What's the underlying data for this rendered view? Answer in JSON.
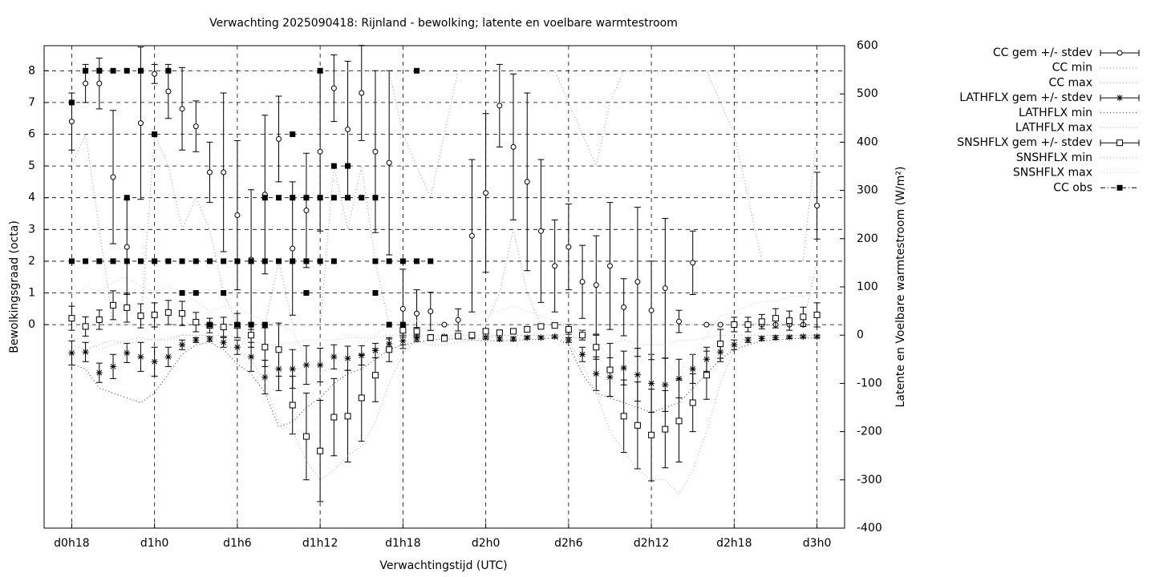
{
  "chart_data": {
    "type": "errorbar-line",
    "title": "Verwachting 2025090418: Rijnland - bewolking; latente en voelbare warmtestroom",
    "xlabel": "Verwachtingstijd (UTC)",
    "ylabel": "Bewolkingsgraad (octa)",
    "y2label": "Latente en Voelbare warmtestroom (W/m²)",
    "xlim": [
      16,
      74
    ],
    "xticks": [
      {
        "value": 18,
        "label": "d0h18"
      },
      {
        "value": 24,
        "label": "d1h0"
      },
      {
        "value": 30,
        "label": "d1h6"
      },
      {
        "value": 36,
        "label": "d1h12"
      },
      {
        "value": 42,
        "label": "d1h18"
      },
      {
        "value": 48,
        "label": "d2h0"
      },
      {
        "value": 54,
        "label": "d2h6"
      },
      {
        "value": 60,
        "label": "d2h12"
      },
      {
        "value": 66,
        "label": "d2h18"
      },
      {
        "value": 72,
        "label": "d3h0"
      }
    ],
    "ylim": [
      -6.41,
      8.79
    ],
    "yticks": [
      0,
      1,
      2,
      3,
      4,
      5,
      6,
      7,
      8
    ],
    "y2lim": [
      -400,
      600
    ],
    "y2ticks": [
      -400,
      -300,
      -200,
      -100,
      0,
      100,
      200,
      300,
      400,
      500,
      600
    ],
    "grid": true,
    "legend": "right-outside",
    "x": [
      18,
      19,
      20,
      21,
      22,
      23,
      24,
      25,
      26,
      27,
      28,
      29,
      30,
      31,
      32,
      33,
      34,
      35,
      36,
      37,
      38,
      39,
      40,
      41,
      42,
      43,
      44,
      45,
      46,
      47,
      48,
      49,
      50,
      51,
      52,
      53,
      54,
      55,
      56,
      57,
      58,
      59,
      60,
      61,
      62,
      63,
      64,
      65,
      66,
      67,
      68,
      69,
      70,
      71,
      72
    ],
    "series": [
      {
        "name": "CC gem +/- stdev",
        "axis": "y",
        "marker": "circle",
        "color": "#000000",
        "values": [
          6.4,
          7.6,
          7.6,
          4.65,
          2.45,
          6.35,
          7.9,
          7.35,
          6.8,
          6.25,
          4.8,
          4.8,
          3.45,
          2.05,
          4.1,
          5.85,
          2.4,
          3.6,
          5.45,
          7.45,
          6.15,
          7.3,
          5.45,
          5.1,
          0.5,
          0.35,
          0.42,
          0,
          0.15,
          2.8,
          4.15,
          6.9,
          5.6,
          4.5,
          2.95,
          1.85,
          2.45,
          1.35,
          1.25,
          1.85,
          0.55,
          1.35,
          0.45,
          1.15,
          0.1,
          1.95,
          0,
          0,
          0,
          0,
          0,
          0,
          0,
          0,
          3.75
        ],
        "errors": [
          0.9,
          0.6,
          0.8,
          2.1,
          1.5,
          2.4,
          0.3,
          0.85,
          1.3,
          0.8,
          0.95,
          2.5,
          2.35,
          2.2,
          2.5,
          1.35,
          2.1,
          1.8,
          2.5,
          1.05,
          2.15,
          1.5,
          2.55,
          2.9,
          1.25,
          0.75,
          0.6,
          0,
          0.35,
          2.4,
          2.5,
          1.3,
          2.3,
          2.8,
          2.25,
          1.45,
          1.35,
          1.15,
          1.55,
          2.0,
          0.9,
          2.35,
          1.55,
          2.2,
          0.35,
          1.0,
          0,
          0,
          0,
          0,
          0,
          0,
          0,
          0,
          1.05
        ]
      },
      {
        "name": "CC min",
        "axis": "y",
        "line": "dotted",
        "color": "#999999",
        "values": [
          5,
          6,
          3,
          0,
          0,
          0,
          6,
          5,
          3,
          4,
          3,
          1,
          0,
          0,
          0,
          2,
          0,
          0,
          0,
          5,
          3,
          5,
          2,
          0,
          0,
          0,
          0,
          0,
          0,
          0,
          0,
          1,
          3,
          1,
          0,
          0,
          0,
          0,
          0,
          0,
          0,
          0,
          0,
          0,
          0,
          0,
          0,
          0,
          0,
          0,
          0,
          0,
          0,
          0,
          2
        ]
      },
      {
        "name": "CC max",
        "axis": "y",
        "line": "dotted",
        "color": "#999999",
        "values": [
          8,
          8,
          8,
          8,
          8,
          8,
          8,
          8,
          8,
          8,
          8,
          8,
          8,
          8,
          8,
          8,
          8,
          8,
          8,
          8,
          8,
          8,
          8,
          8,
          6,
          5,
          4,
          6,
          8,
          8,
          8,
          8,
          8,
          8,
          8,
          8,
          7,
          6,
          5,
          7,
          8,
          8,
          8,
          8,
          8,
          8,
          8,
          7,
          6,
          4,
          2,
          2,
          2,
          2,
          6
        ]
      },
      {
        "name": "LATHFLX gem +/- stdev",
        "axis": "y2",
        "marker": "star",
        "color": "#000000",
        "values": [
          -37,
          -35,
          -78,
          -65,
          -37,
          -45,
          -55,
          -45,
          -20,
          -10,
          -8,
          -15,
          -25,
          -45,
          -87,
          -70,
          -70,
          -62,
          -62,
          -45,
          -48,
          -42,
          -32,
          -18,
          -12,
          -8,
          -5,
          -3,
          -2,
          -3,
          -5,
          -8,
          -8,
          -5,
          -5,
          -3,
          -10,
          -40,
          -80,
          -87,
          -68,
          -82,
          -100,
          -103,
          -90,
          -70,
          -50,
          -35,
          -20,
          -10,
          -7,
          -5,
          -4,
          -3,
          -3
        ],
        "errors": [
          25,
          20,
          20,
          25,
          20,
          30,
          30,
          20,
          10,
          5,
          5,
          10,
          15,
          30,
          35,
          45,
          40,
          40,
          35,
          25,
          25,
          20,
          15,
          10,
          8,
          5,
          4,
          3,
          3,
          3,
          3,
          4,
          4,
          3,
          3,
          3,
          5,
          15,
          35,
          40,
          35,
          55,
          60,
          55,
          40,
          30,
          25,
          20,
          10,
          5,
          4,
          4,
          3,
          3,
          3
        ]
      },
      {
        "name": "LATHFLX min",
        "axis": "y2",
        "line": "dotted",
        "color": "#333333",
        "values": [
          -60,
          -70,
          -110,
          -120,
          -130,
          -140,
          -120,
          -80,
          -40,
          -20,
          -15,
          -30,
          -60,
          -80,
          -120,
          -190,
          -180,
          -150,
          -130,
          -100,
          -80,
          -70,
          -50,
          -30,
          -20,
          -15,
          -10,
          -8,
          -8,
          -10,
          -12,
          -12,
          -10,
          -10,
          -8,
          -6,
          -20,
          -80,
          -120,
          -130,
          -140,
          -150,
          -160,
          -150,
          -140,
          -110,
          -80,
          -50,
          -30,
          -20,
          -12,
          -10,
          -8,
          -6,
          -6
        ]
      },
      {
        "name": "LATHFLX max",
        "axis": "y2",
        "line": "dotted",
        "color": "#bbbbbb",
        "values": [
          -10,
          -5,
          -30,
          -20,
          -10,
          -5,
          -10,
          -5,
          0,
          0,
          0,
          0,
          -5,
          -10,
          -20,
          -20,
          -15,
          -10,
          -10,
          -10,
          -5,
          -5,
          -5,
          0,
          0,
          0,
          0,
          0,
          0,
          0,
          0,
          0,
          0,
          0,
          0,
          0,
          0,
          -10,
          -20,
          -20,
          -10,
          -20,
          -20,
          -20,
          -10,
          -10,
          -5,
          0,
          0,
          0,
          0,
          0,
          0,
          0,
          0
        ]
      },
      {
        "name": "SNSHFLX gem +/- stdev",
        "axis": "y2",
        "marker": "square",
        "color": "#000000",
        "values": [
          35,
          18,
          32,
          62,
          57,
          40,
          42,
          47,
          45,
          27,
          20,
          17,
          20,
          0,
          -25,
          -30,
          -145,
          -210,
          -240,
          -170,
          -168,
          -130,
          -83,
          -30,
          10,
          8,
          -5,
          -7,
          -2,
          0,
          8,
          5,
          8,
          12,
          18,
          20,
          12,
          0,
          -25,
          -72,
          -168,
          -187,
          -207,
          -195,
          -178,
          -140,
          -83,
          -18,
          22,
          22,
          28,
          35,
          30,
          38,
          42
        ],
        "errors": [
          25,
          20,
          20,
          30,
          30,
          25,
          25,
          25,
          25,
          20,
          15,
          20,
          25,
          25,
          40,
          55,
          60,
          90,
          105,
          80,
          95,
          90,
          55,
          25,
          10,
          8,
          6,
          5,
          5,
          5,
          5,
          5,
          5,
          5,
          5,
          5,
          10,
          10,
          25,
          55,
          75,
          90,
          95,
          80,
          85,
          60,
          50,
          30,
          15,
          15,
          15,
          20,
          20,
          20,
          25
        ]
      },
      {
        "name": "SNSHFLX min",
        "axis": "y2",
        "line": "dotted",
        "color": "#aaaaaa",
        "values": [
          -20,
          -30,
          -20,
          -10,
          -20,
          -10,
          -10,
          -10,
          0,
          0,
          0,
          -20,
          -30,
          -50,
          -100,
          -180,
          -200,
          -260,
          -300,
          -280,
          -250,
          -230,
          -180,
          -100,
          -40,
          -10,
          -20,
          -20,
          -15,
          -10,
          -5,
          0,
          0,
          0,
          0,
          0,
          -10,
          -60,
          -120,
          -200,
          -240,
          -280,
          -300,
          -300,
          -330,
          -280,
          -200,
          -100,
          -30,
          0,
          0,
          0,
          0,
          0,
          0
        ]
      },
      {
        "name": "SNSHFLX max",
        "axis": "y2",
        "line": "dotted",
        "color": "#cccccc",
        "values": [
          80,
          100,
          90,
          110,
          120,
          100,
          90,
          100,
          90,
          70,
          50,
          60,
          60,
          40,
          30,
          20,
          10,
          -50,
          -80,
          -60,
          -40,
          -20,
          0,
          20,
          30,
          30,
          20,
          30,
          40,
          40,
          50,
          50,
          60,
          50,
          40,
          30,
          20,
          10,
          -20,
          -40,
          -50,
          -60,
          -40,
          -60,
          -80,
          -40,
          0,
          40,
          50,
          60,
          70,
          70,
          80,
          80,
          90
        ]
      },
      {
        "name": "CC obs",
        "axis": "y",
        "marker": "filled-square",
        "line": "dash-dot",
        "color": "#000000",
        "x": [
          18,
          18,
          19,
          19,
          20,
          20,
          21,
          21,
          22,
          22,
          22,
          23,
          23,
          24,
          24,
          25,
          25,
          26,
          26,
          27,
          27,
          28,
          28,
          29,
          29,
          30,
          30,
          31,
          31,
          32,
          32,
          32,
          33,
          33,
          34,
          34,
          34,
          35,
          35,
          35,
          36,
          36,
          36,
          37,
          37,
          37,
          38,
          38,
          39,
          40,
          40,
          40,
          41,
          41,
          42,
          42,
          43,
          43,
          44
        ],
        "values": [
          7,
          2,
          8,
          2,
          8,
          2,
          8,
          2,
          8,
          4,
          2,
          8,
          2,
          6,
          2,
          8,
          2,
          2,
          1,
          2,
          1,
          2,
          0,
          2,
          1,
          2,
          0,
          2,
          0,
          4,
          2,
          0,
          4,
          2,
          6,
          4,
          2,
          4,
          2,
          1,
          8,
          4,
          2,
          5,
          4,
          2,
          5,
          4,
          4,
          4,
          2,
          1,
          2,
          0,
          2,
          0,
          8,
          2,
          2
        ]
      }
    ]
  }
}
